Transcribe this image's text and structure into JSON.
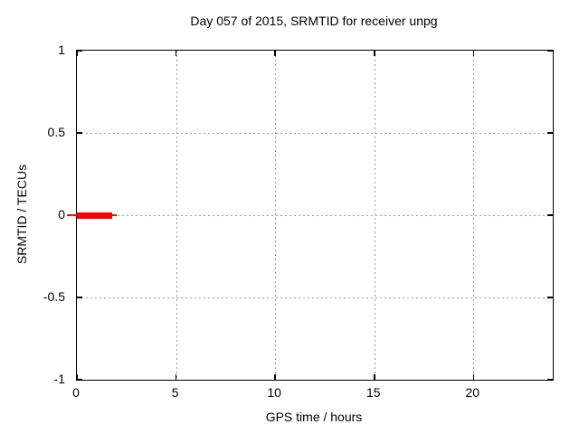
{
  "title": "Day 057 of 2015, SRMTID for receiver unpg",
  "chart_data": {
    "type": "line",
    "title": "Day 057 of 2015, SRMTID for receiver unpg",
    "xlabel": "GPS time / hours",
    "ylabel": "SRMTID / TECUs",
    "xlim": [
      0,
      24
    ],
    "ylim": [
      -1,
      1
    ],
    "xticks": [
      0,
      5,
      10,
      15,
      20
    ],
    "xtick_labels": [
      "0",
      "5",
      "10",
      "15",
      "20"
    ],
    "yticks": [
      -1,
      -0.5,
      0,
      0.5,
      1
    ],
    "ytick_labels": [
      "-1",
      "-0.5",
      "0",
      "0.5",
      "1"
    ],
    "grid": true,
    "grid_style": "dotted",
    "grid_color": "#9a9a9a",
    "border_color": "#000000",
    "background": "#ffffff",
    "legend": "none",
    "series": [
      {
        "name": "SRMTID",
        "color": "#ff0000",
        "description": "Flat red segment at SRMTID = 0 TECUs spanning GPS time approx. 0 to 1.9 hours; no data for rest of day",
        "segments": [
          {
            "x0": -0.5,
            "x1": 2.0,
            "y": 0,
            "thickness": "thin"
          },
          {
            "x0": 0.0,
            "x1": 1.8,
            "y": 0,
            "thickness": "thick"
          }
        ]
      }
    ]
  }
}
